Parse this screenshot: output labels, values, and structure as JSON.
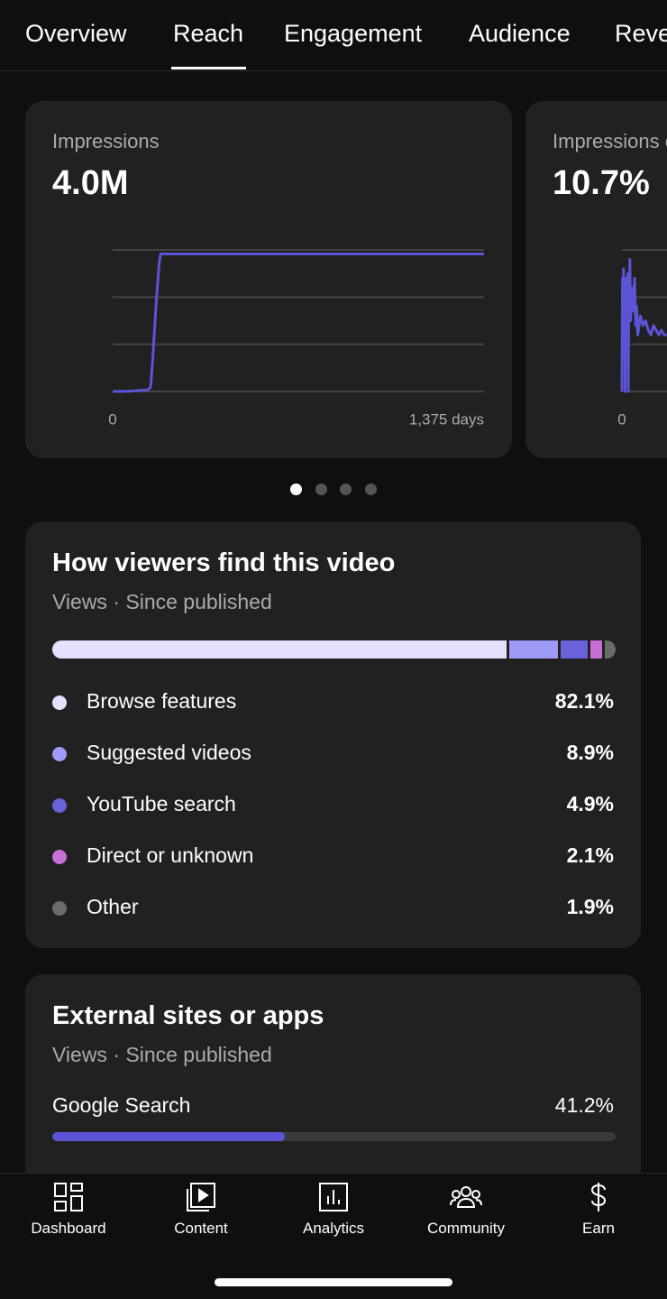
{
  "tabs": [
    "Overview",
    "Reach",
    "Engagement",
    "Audience",
    "Revenue"
  ],
  "metric_cards": [
    {
      "title": "Impressions",
      "value": "4.0M",
      "chart_data": {
        "type": "line",
        "x": [
          0,
          60,
          100,
          130,
          140,
          148,
          160,
          172,
          178,
          1375
        ],
        "series": [
          {
            "color": "#5b54d6",
            "values": [
              0,
              10000,
              30000,
              50000,
              120000,
              900000,
              2500000,
              3800000,
              4080000,
              4080000
            ]
          }
        ],
        "xlim": [
          0,
          1375
        ],
        "xticks": [
          0,
          {
            "value": 1375,
            "label": "1,375 days"
          }
        ],
        "ylim": [
          0,
          4200000
        ],
        "yticks": [
          0,
          {
            "value": 1400000,
            "label": "1.4M"
          },
          {
            "value": 2800000,
            "label": "2.8M"
          },
          {
            "value": 4200000,
            "label": "4.2M"
          }
        ],
        "grid": true
      }
    },
    {
      "title": "Impressions click-through rate",
      "value": "10.7%",
      "chart_data": {
        "type": "line",
        "x": [
          0,
          2,
          4,
          6,
          8,
          10,
          12,
          14,
          16,
          18,
          20,
          22,
          24,
          26,
          28,
          30,
          33,
          36,
          40,
          44,
          48,
          52,
          56,
          60,
          70,
          80,
          90,
          100,
          110,
          120,
          130,
          140,
          150,
          160,
          170
        ],
        "series": [
          {
            "color": "#5b54d6",
            "values": [
              0,
              24,
              14,
              26,
              18,
              22,
              0,
              20,
              24,
              16,
              22,
              25,
              0,
              20,
              18,
              28,
              15,
              22,
              17,
              19,
              24,
              14,
              18,
              12,
              16,
              14,
              15,
              13,
              12,
              14,
              13,
              12,
              13,
              12,
              12
            ]
          }
        ],
        "xlim": [
          0,
          1375
        ],
        "xticks": [
          0
        ],
        "ylim": [
          0,
          30
        ],
        "yticks": [
          {
            "value": 0,
            "label": "0.0%"
          },
          {
            "value": 10,
            "label": "10.0%"
          },
          {
            "value": 20,
            "label": "20.0%"
          },
          {
            "value": 30,
            "label": "30.0%"
          }
        ],
        "grid": true
      }
    }
  ],
  "traffic_sources": {
    "title": "How viewers find this video",
    "subtitle": "Views · Since published",
    "chart_data": {
      "type": "stacked-bar",
      "series": [
        {
          "name": "Browse features",
          "color": "#e3e1fb",
          "values": [
            82.1
          ],
          "value_labels": [
            "82.1%"
          ]
        },
        {
          "name": "Suggested videos",
          "color": "#9e9af5",
          "values": [
            8.9
          ],
          "value_labels": [
            "8.9%"
          ]
        },
        {
          "name": "YouTube search",
          "color": "#6a62d9",
          "values": [
            4.9
          ],
          "value_labels": [
            "4.9%"
          ]
        },
        {
          "name": "Direct or unknown",
          "color": "#c86fd6",
          "values": [
            2.1
          ],
          "value_labels": [
            "2.1%"
          ]
        },
        {
          "name": "Other",
          "color": "#6b6b6b",
          "values": [
            1.9
          ],
          "value_labels": [
            "1.9%"
          ]
        }
      ]
    }
  },
  "external_sites": {
    "title": "External sites or apps",
    "subtitle": "Views · Since published",
    "chart_data": {
      "type": "progress",
      "xlim": [
        0,
        100
      ],
      "series": [
        {
          "name": "Google Search",
          "color": "#5b54d6",
          "values": [
            41.2
          ],
          "value_labels": [
            "41.2%"
          ]
        }
      ]
    }
  },
  "nav": [
    "Dashboard",
    "Content",
    "Analytics",
    "Community",
    "Earn"
  ]
}
